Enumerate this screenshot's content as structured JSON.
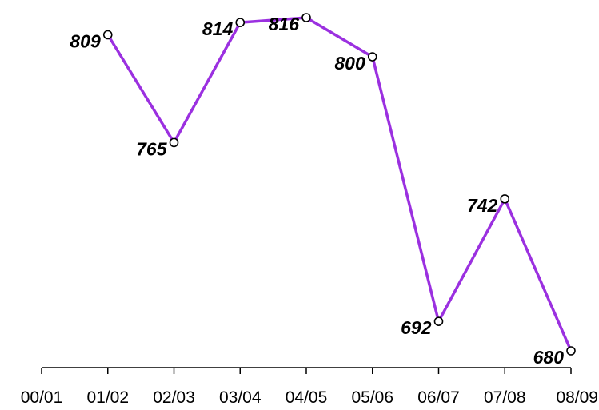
{
  "chart_data": {
    "type": "line",
    "title": "",
    "xlabel": "",
    "ylabel": "",
    "categories": [
      "00/01",
      "01/02",
      "02/03",
      "03/04",
      "04/05",
      "05/06",
      "06/07",
      "07/08",
      "08/09"
    ],
    "series": [
      {
        "x": [
          "01/02",
          "02/03",
          "03/04",
          "04/05",
          "05/06",
          "06/07",
          "07/08",
          "08/09"
        ],
        "values": [
          809,
          765,
          814,
          816,
          800,
          692,
          742,
          680
        ],
        "color": "#9b30e0",
        "marker": "open-circle"
      }
    ],
    "data_labels": true,
    "ylim": [
      673,
      820
    ],
    "grid": false,
    "legend": "none"
  }
}
